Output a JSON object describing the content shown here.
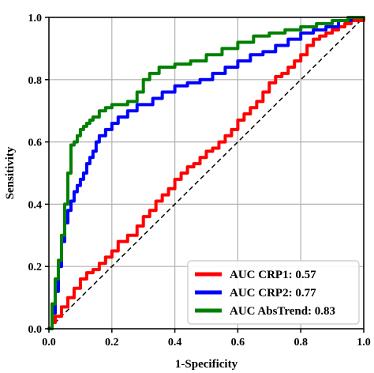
{
  "chart_data": {
    "type": "line",
    "xlabel": "1-Specificity",
    "ylabel": "Sensitivity",
    "xlim": [
      0.0,
      1.0
    ],
    "ylim": [
      0.0,
      1.0
    ],
    "xticks": [
      "0.0",
      "0.2",
      "0.4",
      "0.6",
      "0.8",
      "1.0"
    ],
    "yticks": [
      "0.0",
      "0.2",
      "0.4",
      "0.6",
      "0.8",
      "1.0"
    ],
    "grid": true,
    "legend_position": "bottom-right",
    "reference_line": {
      "style": "dashed",
      "color": "#000000",
      "x": [
        0,
        1
      ],
      "y": [
        0,
        1
      ]
    },
    "series": [
      {
        "name": "AUC CRP1: 0.57",
        "color": "#ff0000",
        "x": [
          0.0,
          0.01,
          0.02,
          0.04,
          0.06,
          0.08,
          0.1,
          0.12,
          0.14,
          0.16,
          0.18,
          0.2,
          0.22,
          0.25,
          0.28,
          0.3,
          0.32,
          0.34,
          0.36,
          0.38,
          0.4,
          0.42,
          0.44,
          0.46,
          0.48,
          0.5,
          0.52,
          0.54,
          0.56,
          0.58,
          0.6,
          0.62,
          0.64,
          0.66,
          0.68,
          0.7,
          0.72,
          0.74,
          0.76,
          0.78,
          0.8,
          0.82,
          0.84,
          0.86,
          0.88,
          0.9,
          0.92,
          0.94,
          0.96,
          0.98,
          1.0
        ],
        "y": [
          0.0,
          0.02,
          0.04,
          0.07,
          0.1,
          0.13,
          0.16,
          0.18,
          0.19,
          0.21,
          0.23,
          0.25,
          0.28,
          0.3,
          0.33,
          0.36,
          0.38,
          0.41,
          0.43,
          0.45,
          0.48,
          0.5,
          0.52,
          0.53,
          0.55,
          0.57,
          0.58,
          0.6,
          0.62,
          0.64,
          0.67,
          0.69,
          0.71,
          0.73,
          0.76,
          0.79,
          0.81,
          0.82,
          0.84,
          0.86,
          0.88,
          0.91,
          0.93,
          0.94,
          0.95,
          0.96,
          0.97,
          0.98,
          0.99,
          0.99,
          1.0
        ]
      },
      {
        "name": "AUC CRP2: 0.77",
        "color": "#0000ff",
        "x": [
          0.0,
          0.01,
          0.02,
          0.03,
          0.04,
          0.05,
          0.06,
          0.07,
          0.08,
          0.09,
          0.1,
          0.11,
          0.12,
          0.13,
          0.14,
          0.15,
          0.16,
          0.18,
          0.2,
          0.22,
          0.25,
          0.28,
          0.3,
          0.33,
          0.36,
          0.4,
          0.44,
          0.48,
          0.52,
          0.56,
          0.6,
          0.64,
          0.68,
          0.72,
          0.76,
          0.8,
          0.84,
          0.88,
          0.92,
          0.96,
          1.0
        ],
        "y": [
          0.0,
          0.05,
          0.12,
          0.2,
          0.28,
          0.34,
          0.38,
          0.41,
          0.44,
          0.46,
          0.48,
          0.5,
          0.53,
          0.55,
          0.57,
          0.6,
          0.62,
          0.64,
          0.66,
          0.68,
          0.7,
          0.72,
          0.72,
          0.74,
          0.76,
          0.78,
          0.79,
          0.8,
          0.82,
          0.84,
          0.86,
          0.88,
          0.89,
          0.91,
          0.93,
          0.95,
          0.96,
          0.97,
          0.99,
          1.0,
          1.0
        ]
      },
      {
        "name": "AUC AbsTrend: 0.83",
        "color": "#008000",
        "x": [
          0.0,
          0.01,
          0.02,
          0.03,
          0.04,
          0.05,
          0.06,
          0.07,
          0.08,
          0.09,
          0.1,
          0.11,
          0.12,
          0.13,
          0.14,
          0.16,
          0.18,
          0.2,
          0.22,
          0.25,
          0.28,
          0.3,
          0.32,
          0.35,
          0.4,
          0.45,
          0.5,
          0.55,
          0.6,
          0.65,
          0.7,
          0.75,
          0.8,
          0.85,
          0.9,
          0.95,
          1.0
        ],
        "y": [
          0.0,
          0.08,
          0.16,
          0.22,
          0.3,
          0.4,
          0.5,
          0.59,
          0.6,
          0.62,
          0.64,
          0.65,
          0.66,
          0.67,
          0.68,
          0.7,
          0.71,
          0.72,
          0.72,
          0.73,
          0.76,
          0.8,
          0.82,
          0.84,
          0.85,
          0.86,
          0.88,
          0.9,
          0.92,
          0.94,
          0.95,
          0.96,
          0.97,
          0.98,
          0.99,
          1.0,
          1.0
        ]
      }
    ]
  }
}
